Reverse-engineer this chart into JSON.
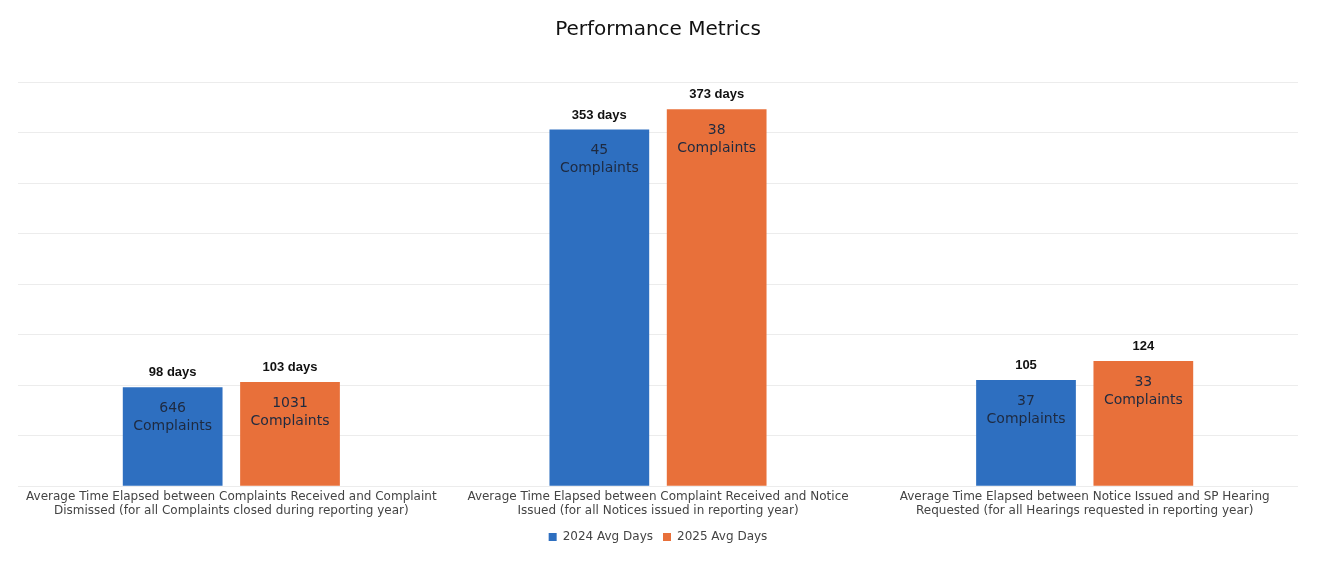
{
  "chart_data": {
    "type": "bar",
    "title": "Performance Metrics",
    "categories": [
      "Average Time Elapsed between Complaints Received and Complaint Dismissed (for all Complaints closed during reporting year)",
      "Average Time Elapsed between Complaint Received and Notice Issued (for all Notices issued in reporting year)",
      "Average Time Elapsed between Notice Issued and SP Hearing Requested (for all Hearings requested in reporting year)"
    ],
    "series": [
      {
        "name": "2024 Avg Days",
        "color": "#2e6fc0",
        "values": [
          98,
          353,
          105
        ],
        "value_labels": [
          "98 days",
          "353 days",
          "105"
        ]
      },
      {
        "name": "2025 Avg Days",
        "color": "#e8703a",
        "values": [
          103,
          373,
          124
        ],
        "value_labels": [
          "103 days",
          "373 days",
          "124"
        ]
      }
    ],
    "annotations": [
      "646 Complaints",
      "45 Complaints",
      "37 Complaints",
      "1031 Complaints",
      "38 Complaints",
      "33 Complaints"
    ],
    "ylim": [
      0,
      400
    ],
    "yticks": [
      {
        "value": 0,
        "label": null
      },
      {
        "value": 50,
        "label": null
      },
      {
        "value": 100,
        "label": null
      },
      {
        "value": 150,
        "label": null
      },
      {
        "value": 200,
        "label": null
      },
      {
        "value": 250,
        "label": null
      },
      {
        "value": 300,
        "label": null
      },
      {
        "value": 350,
        "label": null
      },
      {
        "value": 400,
        "label": null
      }
    ],
    "grid": "y",
    "legend": "bottom",
    "tick_labels": "x"
  }
}
